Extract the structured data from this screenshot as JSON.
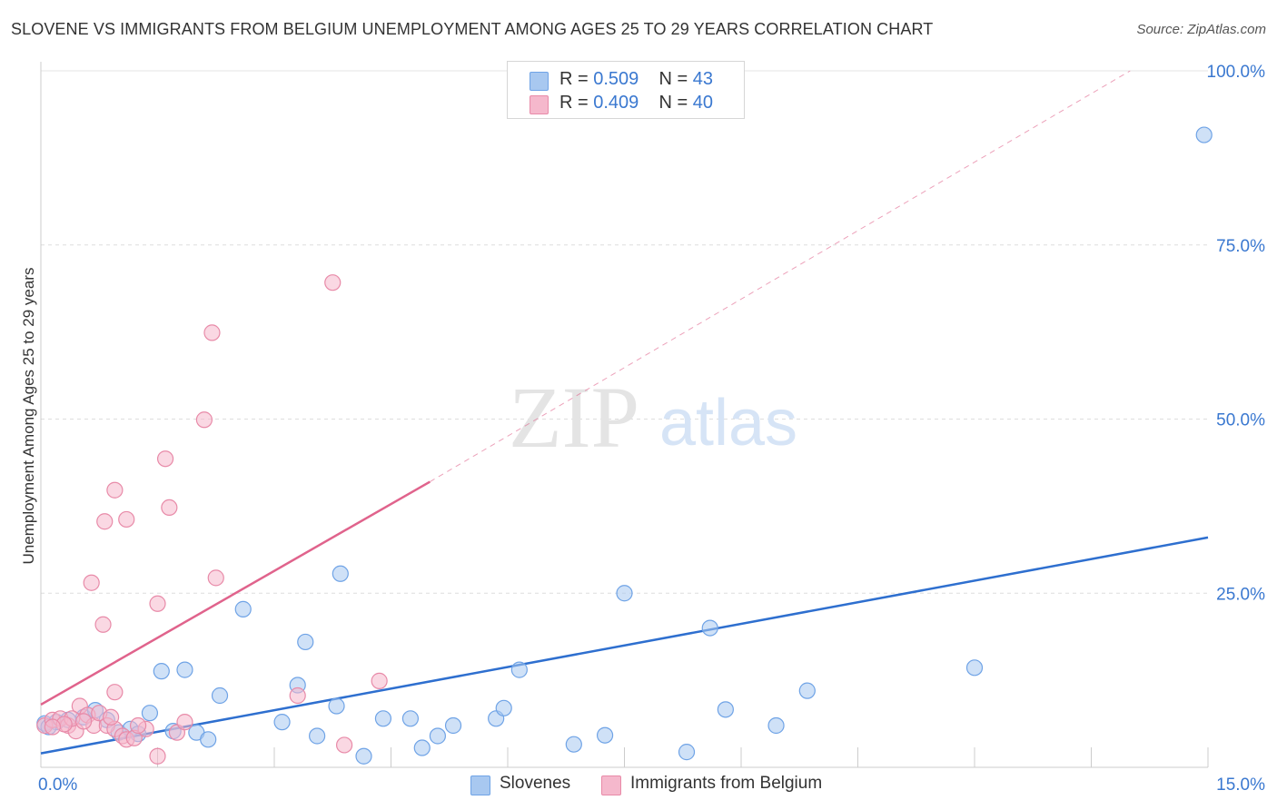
{
  "title": "SLOVENE VS IMMIGRANTS FROM BELGIUM UNEMPLOYMENT AMONG AGES 25 TO 29 YEARS CORRELATION CHART",
  "source": "Source: ZipAtlas.com",
  "watermark": {
    "zip": "ZIP",
    "atlas": "atlas"
  },
  "legend": {
    "rows": [
      {
        "r_label": "R = ",
        "r_value": "0.509",
        "n_label": "N = ",
        "n_value": "43",
        "color": "#a8c8f0"
      },
      {
        "r_label": "R = ",
        "r_value": "0.409",
        "n_label": "N = ",
        "n_value": "40",
        "color": "#f5b8cc"
      }
    ]
  },
  "bottom_legend": [
    "Slovenes",
    "Immigrants from Belgium"
  ],
  "chart_data": {
    "type": "scatter",
    "title": "SLOVENE VS IMMIGRANTS FROM BELGIUM UNEMPLOYMENT AMONG AGES 25 TO 29 YEARS CORRELATION CHART",
    "xlabel": "",
    "ylabel": "Unemployment Among Ages 25 to 29 years",
    "xlim": [
      0,
      15
    ],
    "ylim": [
      0,
      100
    ],
    "x_tick_labels": [
      "0.0%",
      "15.0%"
    ],
    "y_tick_labels": [
      "25.0%",
      "50.0%",
      "75.0%",
      "100.0%"
    ],
    "y_ticks": [
      25,
      50,
      75,
      100
    ],
    "series": [
      {
        "name": "Slovenes",
        "color": "#6fa3e6",
        "fill": "#a8c8f0",
        "line_color": "#2e6fcf",
        "trend": {
          "x0": 0,
          "y0": 2,
          "x1": 15,
          "y1": 33,
          "dashed_extension": false
        },
        "points": [
          [
            0.05,
            6.3
          ],
          [
            0.2,
            6.5
          ],
          [
            0.35,
            6.8
          ],
          [
            0.55,
            7.2
          ],
          [
            0.7,
            8.2
          ],
          [
            0.85,
            6.8
          ],
          [
            1.0,
            5.0
          ],
          [
            1.15,
            5.5
          ],
          [
            1.25,
            4.8
          ],
          [
            1.4,
            7.8
          ],
          [
            1.55,
            13.8
          ],
          [
            1.7,
            5.2
          ],
          [
            1.85,
            14.0
          ],
          [
            2.0,
            5.0
          ],
          [
            2.15,
            4.0
          ],
          [
            2.3,
            10.3
          ],
          [
            2.6,
            22.7
          ],
          [
            3.1,
            6.5
          ],
          [
            3.3,
            11.8
          ],
          [
            3.4,
            18.0
          ],
          [
            3.55,
            4.5
          ],
          [
            3.8,
            8.8
          ],
          [
            3.85,
            27.8
          ],
          [
            4.15,
            1.6
          ],
          [
            4.4,
            7.0
          ],
          [
            4.75,
            7.0
          ],
          [
            4.9,
            2.8
          ],
          [
            5.1,
            4.5
          ],
          [
            5.3,
            6.0
          ],
          [
            5.85,
            7.0
          ],
          [
            5.95,
            8.5
          ],
          [
            6.15,
            14.0
          ],
          [
            6.85,
            3.3
          ],
          [
            7.25,
            4.6
          ],
          [
            7.5,
            25.0
          ],
          [
            8.3,
            2.2
          ],
          [
            8.6,
            20.0
          ],
          [
            8.8,
            8.3
          ],
          [
            9.45,
            6.0
          ],
          [
            9.85,
            11.0
          ],
          [
            12.0,
            14.3
          ],
          [
            14.95,
            90.8
          ],
          [
            0.1,
            5.8
          ]
        ]
      },
      {
        "name": "Immigrants from Belgium",
        "color": "#e88aa8",
        "fill": "#f5b8cc",
        "line_color": "#e0638c",
        "trend": {
          "x0": 0,
          "y0": 9,
          "x1": 5,
          "y1": 41,
          "dashed_to_x": 14,
          "dashed_to_y": 100
        },
        "points": [
          [
            0.05,
            6.0
          ],
          [
            0.15,
            6.8
          ],
          [
            0.25,
            7.0
          ],
          [
            0.35,
            6.0
          ],
          [
            0.45,
            5.2
          ],
          [
            0.5,
            8.8
          ],
          [
            0.6,
            7.5
          ],
          [
            0.68,
            6.0
          ],
          [
            0.75,
            7.8
          ],
          [
            0.85,
            6.0
          ],
          [
            0.95,
            5.5
          ],
          [
            1.05,
            4.5
          ],
          [
            1.1,
            4.0
          ],
          [
            1.2,
            4.2
          ],
          [
            1.35,
            5.5
          ],
          [
            0.65,
            26.5
          ],
          [
            0.8,
            20.5
          ],
          [
            0.82,
            35.3
          ],
          [
            0.95,
            10.8
          ],
          [
            0.95,
            39.8
          ],
          [
            1.1,
            35.6
          ],
          [
            1.5,
            23.5
          ],
          [
            1.6,
            44.3
          ],
          [
            1.65,
            37.3
          ],
          [
            1.75,
            5.0
          ],
          [
            1.85,
            6.5
          ],
          [
            2.1,
            49.9
          ],
          [
            2.2,
            62.4
          ],
          [
            2.25,
            27.2
          ],
          [
            1.5,
            1.6
          ],
          [
            3.3,
            10.3
          ],
          [
            3.75,
            69.6
          ],
          [
            3.9,
            3.2
          ],
          [
            4.35,
            12.4
          ],
          [
            0.4,
            7.0
          ],
          [
            0.3,
            6.2
          ],
          [
            0.55,
            6.6
          ],
          [
            0.9,
            7.2
          ],
          [
            1.25,
            6.0
          ],
          [
            0.15,
            5.8
          ]
        ]
      }
    ]
  }
}
